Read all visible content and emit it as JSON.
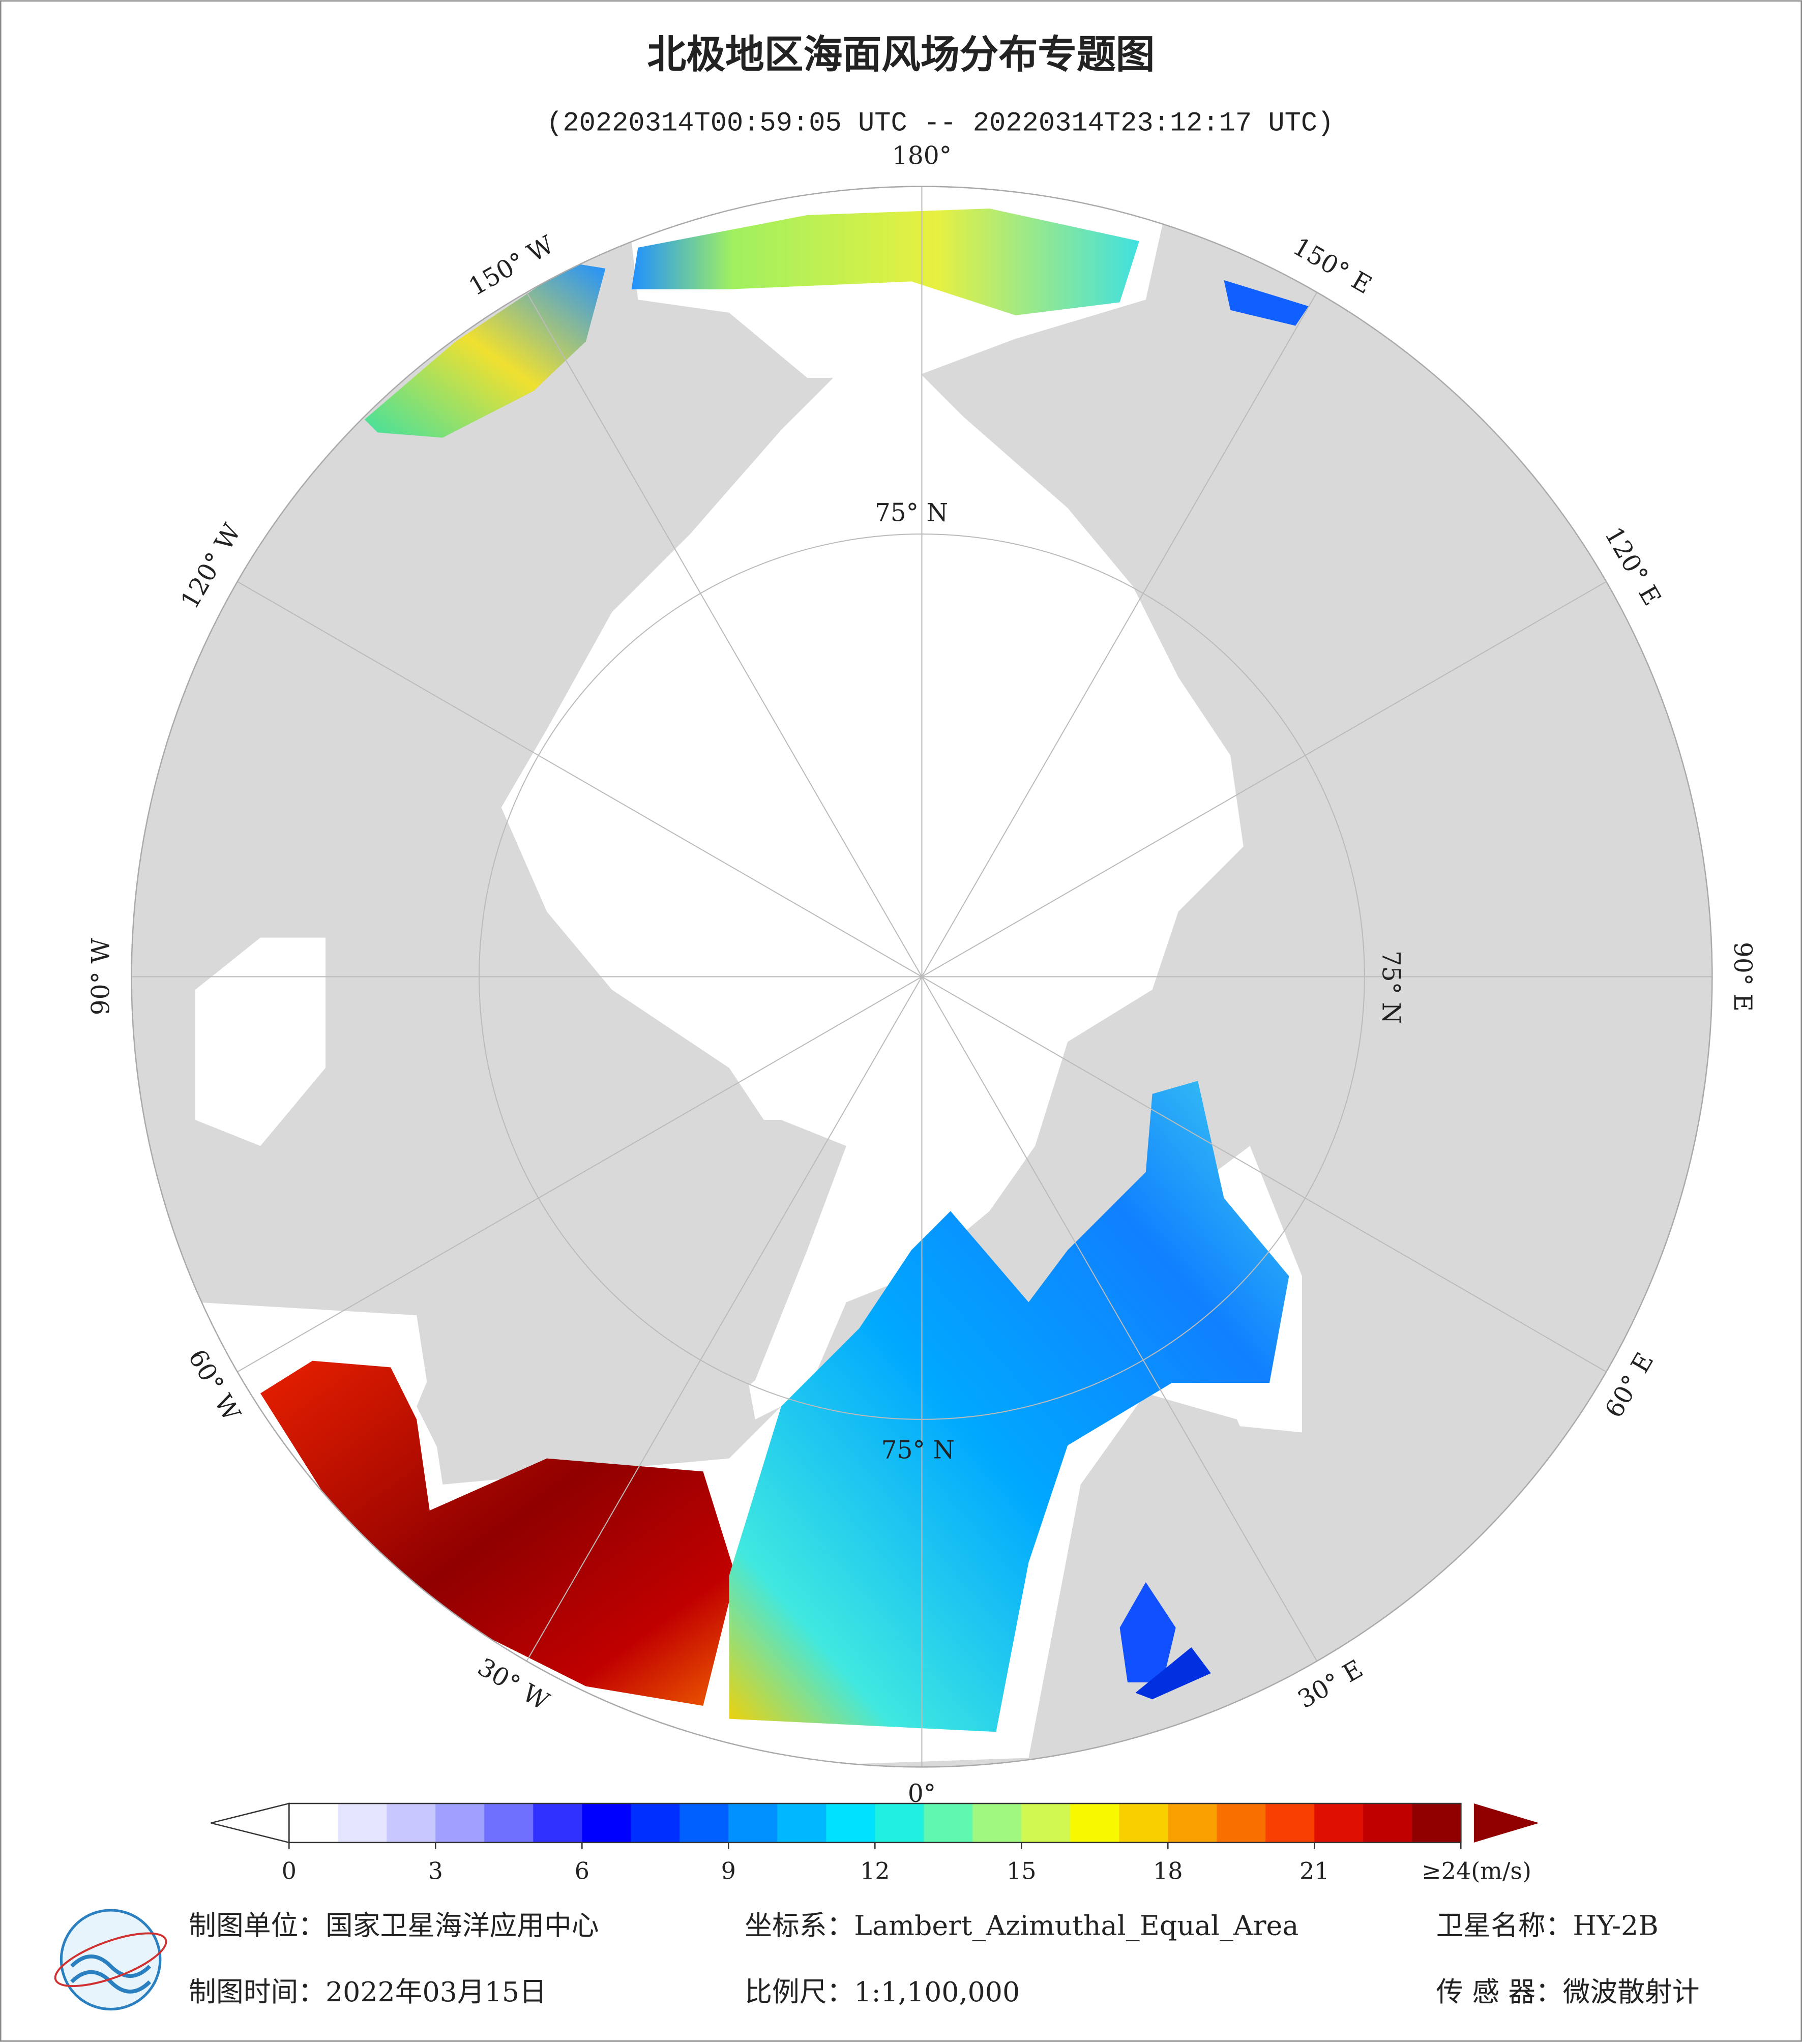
{
  "header": {
    "title": "北极地区海面风场分布专题图",
    "subtitle": "(20220314T00:59:05 UTC -- 20220314T23:12:17 UTC)"
  },
  "map": {
    "lon_labels": [
      "180°",
      "150° E",
      "120° E",
      "90° E",
      "60° E",
      "30° E",
      "0°",
      "30° W",
      "60° W",
      "90° W",
      "120° W",
      "150° W"
    ],
    "lat_label": "75° N"
  },
  "colorbar": {
    "lim": [
      0,
      24
    ],
    "ticks": [
      0,
      3,
      6,
      9,
      12,
      15,
      18,
      21,
      {
        "value": 24,
        "label": "≥24(m/s)"
      }
    ],
    "colors": [
      "#ffffff",
      "#e4e4ff",
      "#c8c8ff",
      "#a0a0ff",
      "#7070ff",
      "#3030ff",
      "#0000ff",
      "#0030ff",
      "#0060ff",
      "#0090ff",
      "#00b8ff",
      "#00e0ff",
      "#20f0e0",
      "#60f8b0",
      "#a0f880",
      "#d0f850",
      "#f8f800",
      "#f8d000",
      "#f8a000",
      "#f87000",
      "#f84000",
      "#e01000",
      "#c00000",
      "#900000"
    ]
  },
  "footer": {
    "unit": "制图单位：国家卫星海洋应用中心",
    "crs": "坐标系：Lambert_Azimuthal_Equal_Area",
    "satellite": "卫星名称：HY-2B",
    "date": "制图时间：2022年03月15日",
    "scale": "比例尺：1:1,100,000",
    "sensor": "传 感 器：微波散射计"
  }
}
